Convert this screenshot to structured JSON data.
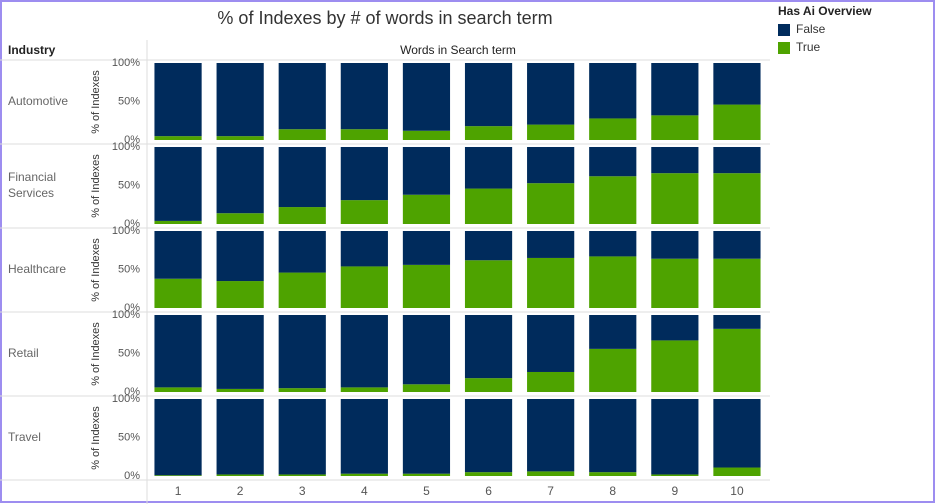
{
  "chart_data": {
    "type": "bar",
    "stacked": true,
    "title": "% of Indexes by # of words in search term",
    "row_header": "Industry",
    "column_header": "Words in Search term",
    "ylabel": "% of Indexes",
    "legend_title": "Has Ai Overview",
    "legend_position": "right",
    "categories": [
      1,
      2,
      3,
      4,
      5,
      6,
      7,
      8,
      9,
      10
    ],
    "ylim": [
      0,
      100
    ],
    "yticks": [
      {
        "value": 0,
        "label": "0%"
      },
      {
        "value": 50,
        "label": "50%"
      },
      {
        "value": 100,
        "label": "100%"
      }
    ],
    "series": [
      {
        "name": "False",
        "color": "#002b5c"
      },
      {
        "name": "True",
        "color": "#4ea300"
      }
    ],
    "panels": [
      {
        "name": "Automotive",
        "values": [
          [
            95,
            95,
            86,
            86,
            88,
            82,
            80,
            72,
            68,
            54
          ],
          [
            5,
            5,
            14,
            14,
            12,
            18,
            20,
            28,
            32,
            46
          ]
        ]
      },
      {
        "name": "Financial\nServices",
        "values": [
          [
            96,
            86,
            78,
            69,
            62,
            54,
            47,
            38,
            34,
            34
          ],
          [
            4,
            14,
            22,
            31,
            38,
            46,
            53,
            62,
            66,
            66
          ]
        ]
      },
      {
        "name": "Healthcare",
        "values": [
          [
            62,
            65,
            54,
            46,
            44,
            38,
            35,
            33,
            36,
            36
          ],
          [
            38,
            35,
            46,
            54,
            56,
            62,
            65,
            67,
            64,
            64
          ]
        ]
      },
      {
        "name": "Retail",
        "values": [
          [
            94,
            96,
            95,
            94,
            90,
            82,
            74,
            44,
            33,
            18
          ],
          [
            6,
            4,
            5,
            6,
            10,
            18,
            26,
            56,
            67,
            82
          ]
        ]
      },
      {
        "name": "Travel",
        "values": [
          [
            99,
            98,
            98,
            97,
            97,
            95,
            94,
            95,
            98,
            89
          ],
          [
            1,
            2,
            2,
            3,
            3,
            5,
            6,
            5,
            2,
            11
          ]
        ]
      }
    ]
  }
}
